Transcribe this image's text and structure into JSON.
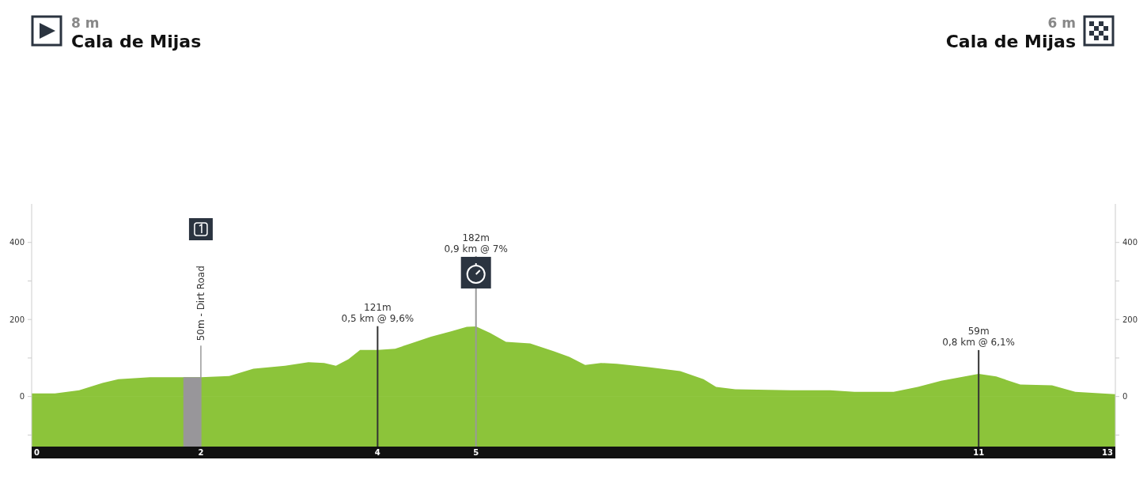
{
  "chart_data": {
    "type": "area",
    "grid": false,
    "annotations": [
      "8 m",
      "Cala de Mijas",
      "6 m",
      "Cala de Mijas"
    ],
    "x": [
      0,
      0.28,
      0.57,
      0.85,
      1.04,
      1.42,
      1.82,
      2.03,
      2.37,
      2.66,
      3.04,
      3.32,
      3.51,
      3.65,
      3.8,
      3.94,
      4.15,
      4.36,
      4.55,
      4.79,
      5.03,
      5.22,
      5.33,
      5.5,
      5.69,
      5.98,
      6.26,
      6.45,
      6.64,
      6.83,
      7.02,
      7.4,
      7.78,
      8.06,
      8.21,
      8.44,
      9.11,
      9.58,
      9.87,
      10.34,
      10.63,
      10.91,
      11.36,
      11.57,
      11.86,
      12.24,
      12.52,
      13
    ],
    "series": [
      {
        "color": "#8cc43a",
        "values": [
          8,
          8,
          16,
          35,
          45,
          50,
          50,
          50,
          53,
          72,
          80,
          89,
          87,
          80,
          97,
          121,
          121,
          124,
          138,
          155,
          169,
          181,
          182,
          165,
          142,
          138,
          118,
          103,
          82,
          87,
          85,
          76,
          66,
          45,
          25,
          19,
          16,
          16,
          12,
          12,
          25,
          41,
          59,
          52,
          31,
          29,
          12,
          6
        ]
      }
    ],
    "xlim": [
      0,
      13
    ],
    "xticks": [
      0,
      {
        "value": 2.03,
        "label": "2"
      },
      {
        "value": 4.15,
        "label": "4"
      },
      {
        "value": 5.33,
        "label": "5"
      },
      {
        "value": 11.36,
        "label": "11"
      },
      13
    ],
    "ylim": [
      -130,
      500
    ],
    "yticks": [
      {
        "value": -100,
        "label": null
      },
      0,
      {
        "value": 100,
        "label": null
      },
      200,
      {
        "value": 300,
        "label": null
      },
      400
    ],
    "y2lim": [
      -130,
      500
    ],
    "y2ticks": [
      {
        "value": -100,
        "label": null
      },
      0,
      {
        "value": 100,
        "label": null
      },
      200,
      {
        "value": 300,
        "label": null
      },
      400
    ],
    "bands": [
      {
        "axis": "x",
        "from": 1.82,
        "to": 2.03,
        "color": "#98969a"
      }
    ],
    "ref_lines": [
      {
        "axis": "x",
        "value": 2.03,
        "label": "50m - Dirt Road",
        "color": "#999999"
      },
      {
        "axis": "x",
        "value": 4.15,
        "label": "121m\n0,5 km @ 9,6%",
        "color": "#333333"
      },
      {
        "axis": "x",
        "value": 5.33,
        "label": "182m\n0,9 km @ 7%",
        "color": "#999999"
      },
      {
        "axis": "x",
        "value": 11.36,
        "label": "59m\n0,8 km @ 6,1%",
        "color": "#333333"
      }
    ]
  }
}
